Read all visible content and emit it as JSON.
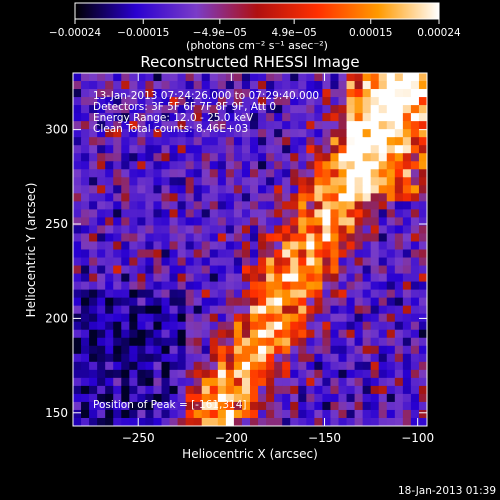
{
  "chart_data": {
    "type": "heatmap",
    "title": "Reconstructed RHESSI Image",
    "xlabel": "Heliocentric X (arcsec)",
    "ylabel": "Heliocentric Y (arcsec)",
    "xlim": [
      -285,
      -95
    ],
    "ylim": [
      143,
      330
    ],
    "x_ticks": [
      -250,
      -200,
      -150,
      -100
    ],
    "x_tick_labels": [
      "−250",
      "−200",
      "−150",
      "−100"
    ],
    "y_ticks": [
      150,
      200,
      250,
      300
    ],
    "y_tick_labels": [
      "150",
      "200",
      "250",
      "300"
    ],
    "colorbar": {
      "range": [
        -0.00024,
        0.00024
      ],
      "ticks": [
        -0.00024,
        -0.00015,
        -4.9e-05,
        4.9e-05,
        0.00015,
        0.00024
      ],
      "tick_labels": [
        "−0.00024",
        "−0.00015",
        "−4.9e−05",
        "4.9e−05",
        "0.00015",
        "0.00024"
      ],
      "units_label": "(photons cm⁻² s⁻¹ asec⁻²)",
      "colormap": [
        "#000000",
        "#2a00d0",
        "#7a3cc8",
        "#b01010",
        "#ff3000",
        "#ff9a00",
        "#ffffff"
      ]
    },
    "info_lines": [
      "13-Jan-2013 07:24:26.000 to 07:29:40.000",
      "Detectors: 3F 5F 6F 7F 8F 9F, Att 0",
      "Energy Range: 12.0 - 25.0 keV",
      "Clean      Total counts: 8.46E+03"
    ],
    "peak_label": "Position of Peak = [-161,314]",
    "peak": [
      -161,
      314
    ],
    "timestamp": "18-Jan-2013 01:39"
  }
}
